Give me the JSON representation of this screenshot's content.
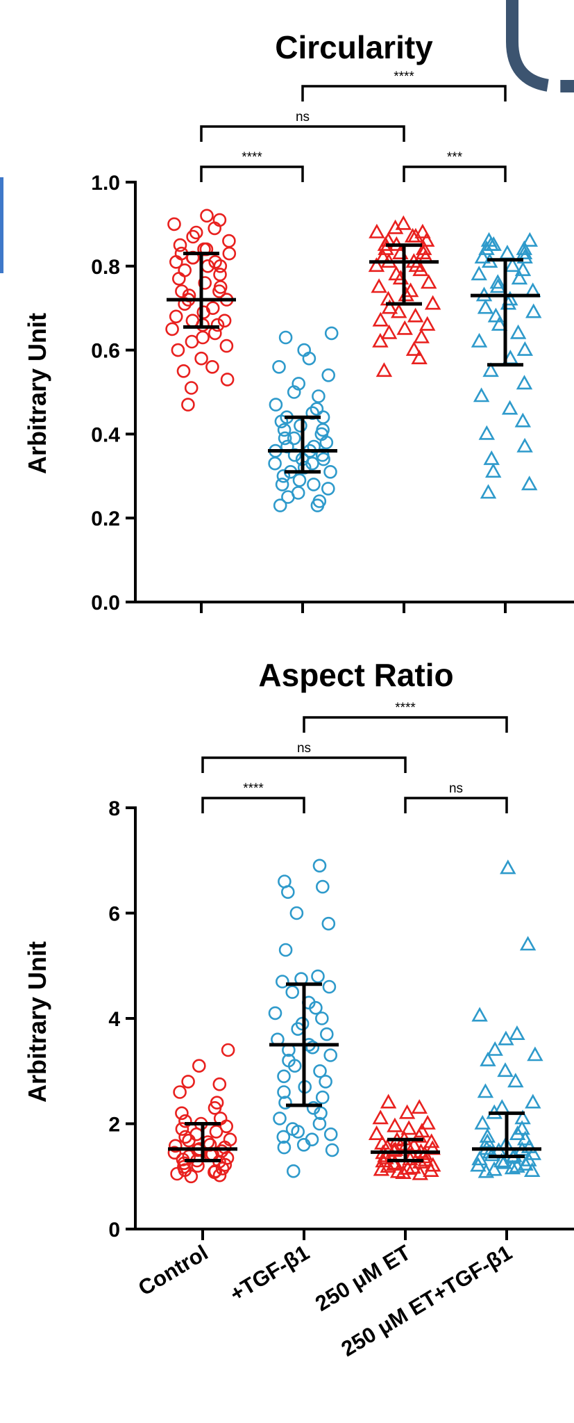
{
  "colors": {
    "red": "#E8201E",
    "blue": "#2E9ACB",
    "deco": "#3C5470",
    "left_bar": "#3E78C9"
  },
  "chart_data": [
    {
      "type": "scatter",
      "title": "Circularity",
      "ylabel": "Arbitrary Unit",
      "ylim": [
        0,
        1.0
      ],
      "yticks": [
        "0.0",
        "0.2",
        "0.4",
        "0.6",
        "0.8",
        "1.0"
      ],
      "categories": [
        "Control",
        "+TGF-β1",
        "250 μM ET",
        "250 μM ET+TGF-β1"
      ],
      "series": [
        {
          "marker": "circle",
          "color": "#E8201E",
          "median": 0.72,
          "q1": 0.655,
          "q3": 0.83,
          "values": [
            0.92,
            0.91,
            0.9,
            0.89,
            0.88,
            0.87,
            0.86,
            0.85,
            0.84,
            0.84,
            0.83,
            0.83,
            0.82,
            0.82,
            0.81,
            0.81,
            0.8,
            0.8,
            0.79,
            0.78,
            0.77,
            0.76,
            0.75,
            0.74,
            0.74,
            0.73,
            0.72,
            0.72,
            0.71,
            0.7,
            0.69,
            0.68,
            0.67,
            0.67,
            0.66,
            0.66,
            0.65,
            0.64,
            0.63,
            0.62,
            0.61,
            0.6,
            0.58,
            0.56,
            0.55,
            0.53,
            0.51,
            0.47
          ]
        },
        {
          "marker": "circle",
          "color": "#2E9ACB",
          "median": 0.36,
          "q1": 0.31,
          "q3": 0.44,
          "values": [
            0.64,
            0.63,
            0.6,
            0.58,
            0.56,
            0.54,
            0.52,
            0.5,
            0.49,
            0.47,
            0.46,
            0.45,
            0.44,
            0.44,
            0.43,
            0.42,
            0.41,
            0.41,
            0.4,
            0.39,
            0.39,
            0.38,
            0.37,
            0.37,
            0.36,
            0.36,
            0.35,
            0.35,
            0.34,
            0.34,
            0.33,
            0.33,
            0.32,
            0.31,
            0.31,
            0.3,
            0.29,
            0.28,
            0.28,
            0.27,
            0.26,
            0.25,
            0.24,
            0.23,
            0.23
          ]
        },
        {
          "marker": "triangle",
          "color": "#E8201E",
          "median": 0.81,
          "q1": 0.71,
          "q3": 0.85,
          "values": [
            0.9,
            0.89,
            0.88,
            0.88,
            0.87,
            0.87,
            0.86,
            0.86,
            0.85,
            0.85,
            0.84,
            0.84,
            0.83,
            0.83,
            0.82,
            0.82,
            0.81,
            0.81,
            0.8,
            0.8,
            0.79,
            0.78,
            0.77,
            0.76,
            0.75,
            0.74,
            0.73,
            0.72,
            0.71,
            0.7,
            0.69,
            0.68,
            0.67,
            0.66,
            0.65,
            0.64,
            0.63,
            0.62,
            0.6,
            0.58,
            0.55
          ]
        },
        {
          "marker": "triangle",
          "color": "#2E9ACB",
          "median": 0.73,
          "q1": 0.565,
          "q3": 0.815,
          "values": [
            0.86,
            0.86,
            0.85,
            0.85,
            0.84,
            0.84,
            0.83,
            0.83,
            0.82,
            0.82,
            0.81,
            0.8,
            0.79,
            0.78,
            0.77,
            0.76,
            0.75,
            0.74,
            0.73,
            0.72,
            0.71,
            0.7,
            0.69,
            0.68,
            0.66,
            0.64,
            0.62,
            0.6,
            0.58,
            0.55,
            0.52,
            0.49,
            0.46,
            0.43,
            0.4,
            0.37,
            0.34,
            0.31,
            0.28,
            0.26
          ]
        }
      ],
      "comparisons": [
        {
          "from": 0,
          "to": 1,
          "label": "****",
          "level": 0
        },
        {
          "from": 2,
          "to": 3,
          "label": "***",
          "level": 0
        },
        {
          "from": 0,
          "to": 2,
          "label": "ns",
          "level": 1
        },
        {
          "from": 1,
          "to": 3,
          "label": "****",
          "level": 2
        }
      ]
    },
    {
      "type": "scatter",
      "title": "Aspect Ratio",
      "ylabel": "Arbitrary Unit",
      "ylim": [
        0,
        8
      ],
      "yticks": [
        "0",
        "2",
        "4",
        "6",
        "8"
      ],
      "categories": [
        "Control",
        "+TGF-β1",
        "250 μM ET",
        "250 μM ET+TGF-β1"
      ],
      "series": [
        {
          "marker": "circle",
          "color": "#E8201E",
          "median": 1.52,
          "q1": 1.3,
          "q3": 2.0,
          "values": [
            3.4,
            3.1,
            2.8,
            2.75,
            2.6,
            2.4,
            2.3,
            2.2,
            2.1,
            2.05,
            2.0,
            1.95,
            1.9,
            1.85,
            1.8,
            1.75,
            1.7,
            1.68,
            1.65,
            1.6,
            1.58,
            1.55,
            1.52,
            1.5,
            1.48,
            1.45,
            1.42,
            1.4,
            1.38,
            1.35,
            1.32,
            1.3,
            1.28,
            1.25,
            1.22,
            1.2,
            1.18,
            1.15,
            1.12,
            1.1,
            1.08,
            1.05,
            1.02,
            1.0
          ]
        },
        {
          "marker": "circle",
          "color": "#2E9ACB",
          "median": 3.5,
          "q1": 2.35,
          "q3": 4.65,
          "values": [
            6.9,
            6.6,
            6.5,
            6.4,
            6.0,
            5.8,
            5.3,
            4.8,
            4.75,
            4.7,
            4.6,
            4.5,
            4.3,
            4.2,
            4.1,
            4.0,
            3.9,
            3.8,
            3.7,
            3.6,
            3.5,
            3.45,
            3.4,
            3.3,
            3.2,
            3.1,
            3.0,
            2.9,
            2.8,
            2.7,
            2.6,
            2.5,
            2.4,
            2.3,
            2.2,
            2.1,
            2.0,
            1.9,
            1.85,
            1.8,
            1.75,
            1.7,
            1.6,
            1.55,
            1.5,
            1.1
          ]
        },
        {
          "marker": "triangle",
          "color": "#E8201E",
          "median": 1.46,
          "q1": 1.3,
          "q3": 1.7,
          "values": [
            2.4,
            2.3,
            2.2,
            2.1,
            2.0,
            1.95,
            1.9,
            1.85,
            1.8,
            1.75,
            1.7,
            1.68,
            1.65,
            1.62,
            1.6,
            1.58,
            1.55,
            1.52,
            1.5,
            1.48,
            1.46,
            1.44,
            1.42,
            1.4,
            1.38,
            1.36,
            1.34,
            1.32,
            1.3,
            1.28,
            1.26,
            1.24,
            1.22,
            1.2,
            1.18,
            1.16,
            1.14,
            1.12,
            1.1,
            1.08,
            1.06,
            1.04
          ]
        },
        {
          "marker": "triangle",
          "color": "#2E9ACB",
          "median": 1.52,
          "q1": 1.38,
          "q3": 2.2,
          "values": [
            6.85,
            5.4,
            4.05,
            3.7,
            3.6,
            3.4,
            3.3,
            3.2,
            3.0,
            2.8,
            2.6,
            2.4,
            2.3,
            2.2,
            2.1,
            2.0,
            1.9,
            1.8,
            1.75,
            1.7,
            1.65,
            1.6,
            1.55,
            1.52,
            1.5,
            1.48,
            1.45,
            1.42,
            1.4,
            1.38,
            1.35,
            1.32,
            1.3,
            1.28,
            1.25,
            1.22,
            1.2,
            1.18,
            1.15,
            1.12,
            1.1,
            1.08
          ]
        }
      ],
      "comparisons": [
        {
          "from": 0,
          "to": 1,
          "label": "****",
          "level": 0
        },
        {
          "from": 2,
          "to": 3,
          "label": "ns",
          "level": 0
        },
        {
          "from": 0,
          "to": 2,
          "label": "ns",
          "level": 1
        },
        {
          "from": 1,
          "to": 3,
          "label": "****",
          "level": 2
        }
      ]
    }
  ]
}
